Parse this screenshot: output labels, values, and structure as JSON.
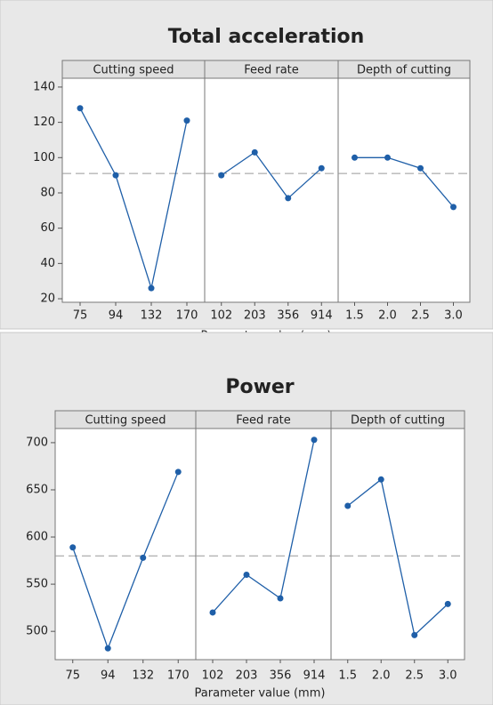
{
  "chart_data": [
    {
      "type": "line",
      "title": "Total acceleration",
      "xlabel": "Parameter value (mm)",
      "color": "#1f5fa8",
      "ylim": [
        18,
        145
      ],
      "yticks": [
        20,
        40,
        60,
        80,
        100,
        120,
        140
      ],
      "reference": 91,
      "panels": [
        {
          "title": "Cutting speed",
          "categories": [
            "75",
            "94",
            "132",
            "170"
          ],
          "values": [
            128,
            90,
            26,
            121
          ]
        },
        {
          "title": "Feed rate",
          "categories": [
            "102",
            "203",
            "356",
            "914"
          ],
          "values": [
            90,
            103,
            77,
            94
          ]
        },
        {
          "title": "Depth of cutting",
          "categories": [
            "1.5",
            "2.0",
            "2.5",
            "3.0"
          ],
          "values": [
            100,
            100,
            94,
            72
          ]
        }
      ]
    },
    {
      "type": "line",
      "title": "Power",
      "xlabel": "Parameter value (mm)",
      "color": "#1f5fa8",
      "ylim": [
        470,
        715
      ],
      "yticks": [
        500,
        550,
        600,
        650,
        700
      ],
      "reference": 580,
      "panels": [
        {
          "title": "Cutting speed",
          "categories": [
            "75",
            "94",
            "132",
            "170"
          ],
          "values": [
            589,
            482,
            578,
            669
          ]
        },
        {
          "title": "Feed rate",
          "categories": [
            "102",
            "203",
            "356",
            "914"
          ],
          "values": [
            520,
            560,
            535,
            703
          ]
        },
        {
          "title": "Depth of cutting",
          "categories": [
            "1.5",
            "2.0",
            "2.5",
            "3.0"
          ],
          "values": [
            633,
            661,
            496,
            529
          ]
        }
      ]
    }
  ]
}
